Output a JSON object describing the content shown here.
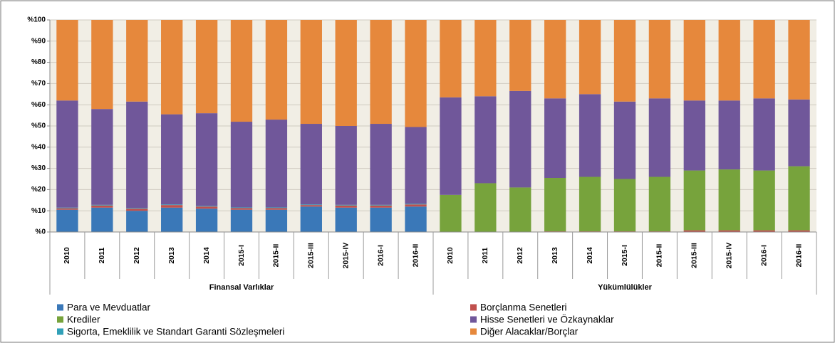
{
  "chart_data": {
    "type": "stacked_bar",
    "groups": [
      {
        "name": "Finansal Varlıklar",
        "categories": [
          "2010",
          "2011",
          "2012",
          "2013",
          "2014",
          "2015-I",
          "2015-II",
          "2015-III",
          "2015-IV",
          "2016-I",
          "2016-II"
        ]
      },
      {
        "name": "Yükümlülükler",
        "categories": [
          "2010",
          "2011",
          "2012",
          "2013",
          "2014",
          "2015-I",
          "2015-II",
          "2015-III",
          "2015-IV",
          "2016-I",
          "2016-II"
        ]
      }
    ],
    "series": [
      {
        "name": "Para ve Mevduatlar",
        "color": "#3a78b8",
        "values": [
          10.5,
          11.5,
          10,
          11.5,
          11,
          10.5,
          10.5,
          12,
          11.5,
          11.5,
          12,
          0,
          0,
          0,
          0,
          0,
          0,
          0,
          0,
          0,
          0,
          0
        ]
      },
      {
        "name": "Borçlanma Senetleri",
        "color": "#c0504d",
        "values": [
          0.7,
          1,
          1,
          1.2,
          1,
          0.8,
          0.8,
          0.7,
          1,
          1,
          1,
          0,
          0,
          0,
          0.3,
          0.3,
          0.3,
          0.3,
          0.8,
          0.8,
          0.8,
          0.8
        ]
      },
      {
        "name": "Krediler",
        "color": "#77a33c",
        "values": [
          0,
          0,
          0,
          0,
          0,
          0,
          0,
          0,
          0,
          0,
          0,
          17.5,
          23,
          21,
          25.2,
          25.7,
          24.7,
          25.7,
          28.2,
          28.7,
          28.2,
          30.2
        ]
      },
      {
        "name": "Sigorta, Emeklilik ve Standart Garanti Sözleşmeleri",
        "color": "#31a0b8",
        "values": [
          0.3,
          0.3,
          0.3,
          0.3,
          0.3,
          0.3,
          0.3,
          0.3,
          0.3,
          0.3,
          0.3,
          0,
          0,
          0,
          0,
          0,
          0,
          0,
          0,
          0,
          0,
          0
        ]
      },
      {
        "name": "Hisse Senetleri ve Özkaynaklar",
        "color": "#70579a",
        "values": [
          50.5,
          45.2,
          50.2,
          42.5,
          43.7,
          40.4,
          41.4,
          38,
          37.2,
          38.2,
          36.2,
          46,
          41,
          45.5,
          37.5,
          39,
          36.5,
          37,
          33,
          32.5,
          34,
          31.5
        ]
      },
      {
        "name": "Diğer Alacaklar/Borçlar",
        "color": "#e6883c",
        "values": [
          38,
          42,
          38.5,
          44.5,
          44,
          48,
          47,
          49,
          50,
          49,
          50.5,
          36.5,
          36,
          33.5,
          37,
          35,
          38.5,
          37,
          38,
          38,
          37,
          37.5
        ]
      }
    ],
    "ylim": [
      0,
      100
    ],
    "yticks": [
      {
        "value": 0,
        "label": "%0"
      },
      {
        "value": 10,
        "label": "%10"
      },
      {
        "value": 20,
        "label": "%20"
      },
      {
        "value": 30,
        "label": "%30"
      },
      {
        "value": 40,
        "label": "%40"
      },
      {
        "value": 50,
        "label": "%50"
      },
      {
        "value": 60,
        "label": "%60"
      },
      {
        "value": 70,
        "label": "%70"
      },
      {
        "value": 80,
        "label": "%80"
      },
      {
        "value": 90,
        "label": "%90"
      },
      {
        "value": 100,
        "label": "%100"
      }
    ],
    "grid": true
  }
}
